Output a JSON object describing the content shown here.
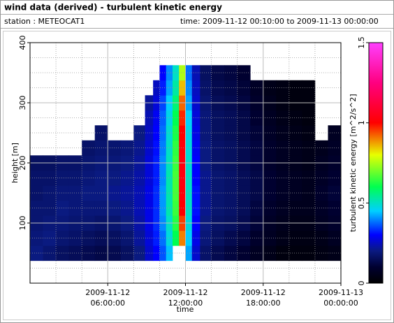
{
  "chart_data": {
    "type": "heatmap",
    "title": "wind data (derived) - turbulent kinetic energy",
    "station": "station : METEOCAT1",
    "time_range": "time: 2009-11-12 00:10:00 to 2009-11-13 00:00:00",
    "xlabel": "time",
    "ylabel": "height [m]",
    "colorbar_label": "turbulent kinetic energy [m^2/s^2]",
    "xlim": [
      "2009-11-12 00:00:00",
      "2009-11-13 00:00:00"
    ],
    "xticks": [
      "2009-11-12 06:00:00",
      "2009-11-12 12:00:00",
      "2009-11-12 18:00:00",
      "2009-11-13 00:00:00"
    ],
    "xticks_minor": [
      "2009-11-12 02:00:00",
      "2009-11-12 04:00:00",
      "2009-11-12 08:00:00",
      "2009-11-12 10:00:00",
      "2009-11-12 14:00:00",
      "2009-11-12 16:00:00",
      "2009-11-12 20:00:00",
      "2009-11-12 22:00:00"
    ],
    "ylim": [
      0,
      400
    ],
    "yticks": [
      100,
      200,
      300,
      400
    ],
    "yticks_minor": [
      25,
      50,
      75,
      125,
      150,
      175,
      225,
      250,
      275,
      325,
      350,
      375
    ],
    "clim": [
      0,
      1.5
    ],
    "cticks": [
      0,
      0.5,
      1,
      1.5
    ],
    "colorscale": [
      [
        0,
        "#000000"
      ],
      [
        0.1,
        "#000030"
      ],
      [
        0.2,
        "#0a1a80"
      ],
      [
        0.3,
        "#0000ff"
      ],
      [
        0.45,
        "#00d0ff"
      ],
      [
        0.6,
        "#00ff50"
      ],
      [
        0.8,
        "#e8ff00"
      ],
      [
        1.0,
        "#ff0000"
      ],
      [
        1.25,
        "#ff0080"
      ],
      [
        1.5,
        "#ff40ff"
      ]
    ],
    "x": [
      "2009-11-12 00:30:00",
      "2009-11-12 01:30:00",
      "2009-11-12 02:30:00",
      "2009-11-12 03:30:00",
      "2009-11-12 04:30:00",
      "2009-11-12 05:30:00",
      "2009-11-12 06:30:00",
      "2009-11-12 07:30:00",
      "2009-11-12 08:30:00",
      "2009-11-12 09:15:00",
      "2009-11-12 09:45:00",
      "2009-11-12 10:15:00",
      "2009-11-12 10:45:00",
      "2009-11-12 11:15:00",
      "2009-11-12 11:45:00",
      "2009-11-12 12:15:00",
      "2009-11-12 12:45:00",
      "2009-11-12 13:30:00",
      "2009-11-12 14:30:00",
      "2009-11-12 15:30:00",
      "2009-11-12 16:30:00",
      "2009-11-12 17:30:00",
      "2009-11-12 18:30:00",
      "2009-11-12 19:30:00",
      "2009-11-12 20:30:00",
      "2009-11-12 21:30:00",
      "2009-11-12 22:30:00",
      "2009-11-12 23:30:00"
    ],
    "y": [
      50,
      75,
      100,
      125,
      150,
      175,
      200,
      225,
      250,
      275,
      300,
      325,
      350
    ],
    "z": [
      [
        0.2,
        0.19,
        0.18,
        0.18,
        0.17,
        0.17,
        0.16,
        null,
        null,
        null,
        null,
        null,
        null
      ],
      [
        0.18,
        0.2,
        0.19,
        0.18,
        0.18,
        0.17,
        0.16,
        null,
        null,
        null,
        null,
        null,
        null
      ],
      [
        0.16,
        0.18,
        0.19,
        0.2,
        0.19,
        0.18,
        0.17,
        null,
        null,
        null,
        null,
        null,
        null
      ],
      [
        0.15,
        0.17,
        0.18,
        0.19,
        0.19,
        0.18,
        0.17,
        null,
        null,
        null,
        null,
        null,
        null
      ],
      [
        0.14,
        0.16,
        0.18,
        0.19,
        0.2,
        0.19,
        0.18,
        0.17,
        null,
        null,
        null,
        null,
        null
      ],
      [
        0.13,
        0.15,
        0.17,
        0.19,
        0.2,
        0.2,
        0.19,
        0.18,
        0.17,
        null,
        null,
        null,
        null
      ],
      [
        0.14,
        0.16,
        0.18,
        0.2,
        0.21,
        0.2,
        0.19,
        0.18,
        null,
        null,
        null,
        null,
        null
      ],
      [
        0.16,
        0.18,
        0.2,
        0.21,
        0.22,
        0.21,
        0.2,
        0.19,
        null,
        null,
        null,
        null,
        null
      ],
      [
        0.2,
        0.22,
        0.23,
        0.24,
        0.24,
        0.23,
        0.22,
        0.21,
        0.2,
        null,
        null,
        null,
        null
      ],
      [
        0.26,
        0.27,
        0.28,
        0.28,
        0.28,
        0.27,
        0.27,
        0.26,
        0.25,
        0.24,
        0.22,
        null,
        null
      ],
      [
        0.3,
        0.32,
        0.33,
        0.33,
        0.33,
        0.32,
        0.32,
        0.31,
        0.3,
        0.29,
        0.27,
        0.25,
        null
      ],
      [
        0.36,
        0.38,
        0.4,
        0.41,
        0.41,
        0.4,
        0.4,
        0.39,
        0.38,
        0.37,
        0.35,
        0.32,
        0.3
      ],
      [
        0.44,
        0.48,
        0.5,
        0.52,
        0.52,
        0.52,
        0.51,
        0.5,
        0.49,
        0.47,
        0.45,
        0.42,
        0.4
      ],
      [
        null,
        0.6,
        0.63,
        0.65,
        0.66,
        0.66,
        0.65,
        0.64,
        0.62,
        0.6,
        0.57,
        0.53,
        0.5
      ],
      [
        null,
        0.9,
        0.95,
        1.0,
        1.02,
        1.03,
        1.03,
        1.02,
        1.0,
        0.97,
        0.92,
        0.85,
        0.75
      ],
      [
        0.42,
        0.45,
        0.48,
        0.5,
        0.5,
        0.5,
        0.49,
        0.48,
        0.47,
        0.45,
        0.42,
        0.4,
        0.38
      ],
      [
        0.26,
        0.28,
        0.3,
        0.31,
        0.31,
        0.3,
        0.3,
        0.29,
        0.28,
        0.27,
        0.26,
        0.25,
        0.24
      ],
      [
        0.17,
        0.19,
        0.2,
        0.21,
        0.21,
        0.21,
        0.2,
        0.2,
        0.19,
        0.19,
        0.18,
        0.17,
        0.16
      ],
      [
        0.14,
        0.16,
        0.17,
        0.18,
        0.18,
        0.18,
        0.17,
        0.17,
        0.16,
        0.16,
        0.15,
        0.14,
        0.13
      ],
      [
        0.12,
        0.14,
        0.16,
        0.17,
        0.17,
        0.17,
        0.16,
        0.16,
        0.15,
        0.15,
        0.14,
        0.13,
        0.12
      ],
      [
        0.1,
        0.12,
        0.14,
        0.15,
        0.15,
        0.15,
        0.14,
        0.14,
        0.13,
        0.13,
        0.12,
        0.11,
        0.1
      ],
      [
        0.07,
        0.09,
        0.11,
        0.12,
        0.13,
        0.13,
        0.12,
        0.12,
        0.11,
        0.1,
        0.09,
        0.08,
        null
      ],
      [
        0.05,
        0.07,
        0.08,
        0.09,
        0.1,
        0.1,
        0.09,
        0.09,
        0.08,
        0.07,
        0.06,
        0.05,
        null
      ],
      [
        0.03,
        0.05,
        0.06,
        0.07,
        0.08,
        0.08,
        0.07,
        0.07,
        0.06,
        0.05,
        0.04,
        0.04,
        null
      ],
      [
        0.03,
        0.04,
        0.05,
        0.06,
        0.07,
        0.07,
        0.06,
        0.06,
        0.05,
        0.04,
        0.03,
        0.03,
        null
      ],
      [
        0.03,
        0.04,
        0.05,
        0.06,
        0.06,
        0.06,
        0.05,
        0.05,
        0.04,
        0.03,
        0.03,
        0.03,
        null
      ],
      [
        0.04,
        0.05,
        0.07,
        0.08,
        0.09,
        0.08,
        0.07,
        0.06,
        null,
        null,
        null,
        null,
        null
      ],
      [
        0.05,
        0.07,
        0.09,
        0.1,
        0.11,
        0.1,
        0.09,
        0.08,
        0.07,
        null,
        null,
        null,
        null
      ]
    ]
  }
}
